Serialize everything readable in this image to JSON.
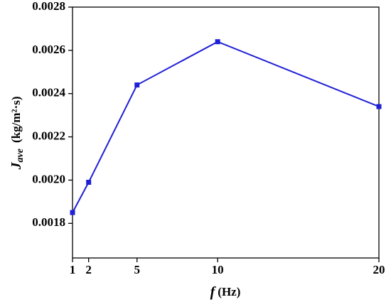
{
  "chart_data": {
    "type": "line",
    "x_label_symbol": "f",
    "x_label_unit": "(Hz)",
    "y_label_symbol": "J",
    "y_label_subscript": "ave",
    "y_label_unit": "(kg/m²·s)",
    "x": [
      1,
      2,
      5,
      10,
      20
    ],
    "series": [
      {
        "color": "#1f1fd6",
        "values": [
          0.00185,
          0.00199,
          0.00244,
          0.00264,
          0.00234
        ]
      }
    ],
    "xlim": [
      1,
      20
    ],
    "xticks": [
      1,
      2,
      5,
      10,
      20
    ],
    "ylim": [
      0.00164,
      0.0028
    ],
    "yticks": [
      0.0018,
      {
        "value": 0.002,
        "label": "0.0020"
      },
      0.0022,
      0.0024,
      0.0026,
      0.0028
    ],
    "grid": false
  }
}
